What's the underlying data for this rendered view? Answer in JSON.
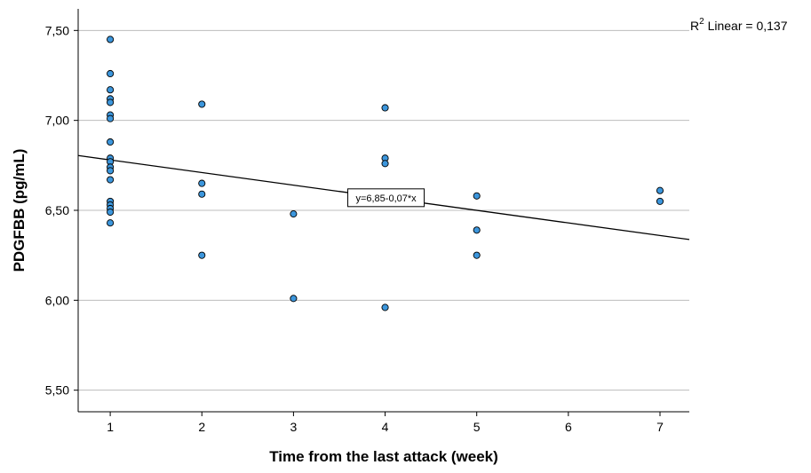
{
  "chart_data": {
    "type": "scatter",
    "title": "",
    "xlabel": "Time from the last attack (week)",
    "ylabel": "PDGFBB (pg/mL)",
    "xlim": [
      0.65,
      7.32
    ],
    "ylim": [
      5.38,
      7.62
    ],
    "x_ticks": [
      1,
      2,
      3,
      4,
      5,
      6,
      7
    ],
    "x_tick_labels": [
      "1",
      "2",
      "3",
      "4",
      "5",
      "6",
      "7"
    ],
    "y_ticks": [
      5.5,
      6.0,
      6.5,
      7.0,
      7.5
    ],
    "y_tick_labels": [
      "5,50",
      "6,00",
      "6,50",
      "7,00",
      "7,50"
    ],
    "grid": "horizontal",
    "legend": "none",
    "point_color": "#3c96dc",
    "point_edge_color": "#000000",
    "line_color": "#000000",
    "gridline_color": "#bdbdbd",
    "points": [
      {
        "x": 1,
        "y": 7.45
      },
      {
        "x": 1,
        "y": 7.26
      },
      {
        "x": 1,
        "y": 7.17
      },
      {
        "x": 1,
        "y": 7.12
      },
      {
        "x": 1,
        "y": 7.1
      },
      {
        "x": 1,
        "y": 7.03
      },
      {
        "x": 1,
        "y": 7.01
      },
      {
        "x": 1,
        "y": 6.88
      },
      {
        "x": 1,
        "y": 6.79
      },
      {
        "x": 1,
        "y": 6.77
      },
      {
        "x": 1,
        "y": 6.74
      },
      {
        "x": 1,
        "y": 6.72
      },
      {
        "x": 1,
        "y": 6.67
      },
      {
        "x": 1,
        "y": 6.55
      },
      {
        "x": 1,
        "y": 6.53
      },
      {
        "x": 1,
        "y": 6.51
      },
      {
        "x": 1,
        "y": 6.49
      },
      {
        "x": 1,
        "y": 6.43
      },
      {
        "x": 2,
        "y": 7.09
      },
      {
        "x": 2,
        "y": 6.65
      },
      {
        "x": 2,
        "y": 6.59
      },
      {
        "x": 2,
        "y": 6.25
      },
      {
        "x": 3,
        "y": 6.48
      },
      {
        "x": 3,
        "y": 6.01
      },
      {
        "x": 4,
        "y": 7.07
      },
      {
        "x": 4,
        "y": 6.79
      },
      {
        "x": 4,
        "y": 6.76
      },
      {
        "x": 4,
        "y": 5.96
      },
      {
        "x": 5,
        "y": 6.58
      },
      {
        "x": 5,
        "y": 6.39
      },
      {
        "x": 5,
        "y": 6.25
      },
      {
        "x": 7,
        "y": 6.61
      },
      {
        "x": 7,
        "y": 6.55
      }
    ],
    "fit_line": {
      "intercept": 6.85,
      "slope": -0.07,
      "equation_label": "y=6,85-0,07*x",
      "label_anchor_x": 4.0
    },
    "r2_label": {
      "prefix": "R",
      "superscript": "2",
      "text": " Linear = 0,137"
    }
  }
}
